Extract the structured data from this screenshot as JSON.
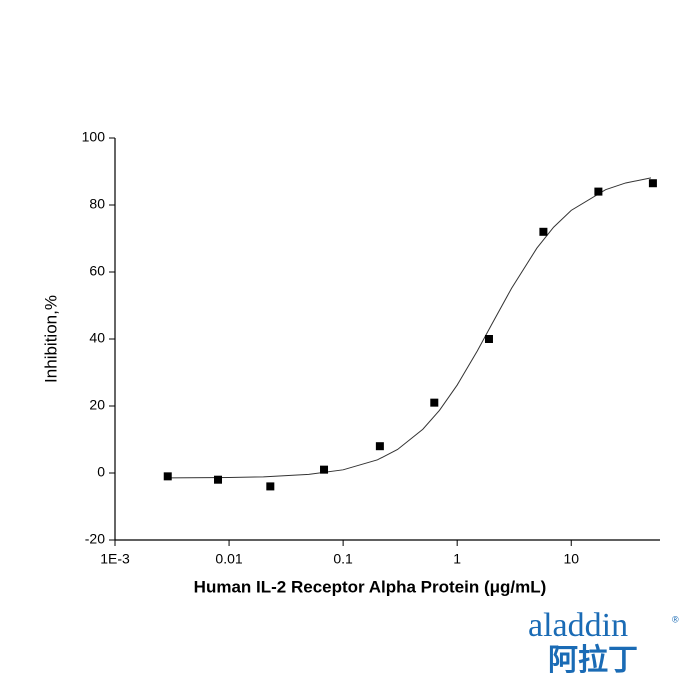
{
  "chart_data": {
    "type": "scatter",
    "xlabel": "Human IL-2 Receptor Alpha Protein (μg/mL)",
    "ylabel": "Inhibition,%",
    "xscale": "log",
    "xlim": [
      0.001,
      60
    ],
    "ylim": [
      -20,
      100
    ],
    "xticks": [
      {
        "value": 0.001,
        "label": "1E-3"
      },
      0.01,
      0.1,
      1,
      10
    ],
    "yticks": [
      -20,
      0,
      20,
      40,
      60,
      80,
      100
    ],
    "series": [
      {
        "type": "scatter",
        "color": "#000000",
        "x": [
          0.0029,
          0.008,
          0.023,
          0.068,
          0.21,
          0.63,
          1.9,
          5.7,
          17.3,
          52
        ],
        "values": [
          -1,
          -2,
          -4,
          1,
          8,
          21,
          40,
          72,
          84,
          86.5
        ]
      },
      {
        "type": "line",
        "color": "#333333",
        "x": [
          0.003,
          0.01,
          0.02,
          0.05,
          0.1,
          0.2,
          0.3,
          0.5,
          0.7,
          1,
          1.5,
          2,
          3,
          5,
          7,
          10,
          20,
          30,
          50
        ],
        "values": [
          -1.46,
          -1.34,
          -1.14,
          -0.42,
          0.95,
          3.93,
          7.02,
          13.07,
          18.72,
          26.25,
          36.43,
          44.25,
          55.16,
          67.14,
          73.36,
          78.4,
          84.57,
          86.58,
          88.1
        ]
      }
    ]
  },
  "logo": {
    "text": "aladdin",
    "mark": "®",
    "cn": "阿拉丁"
  }
}
